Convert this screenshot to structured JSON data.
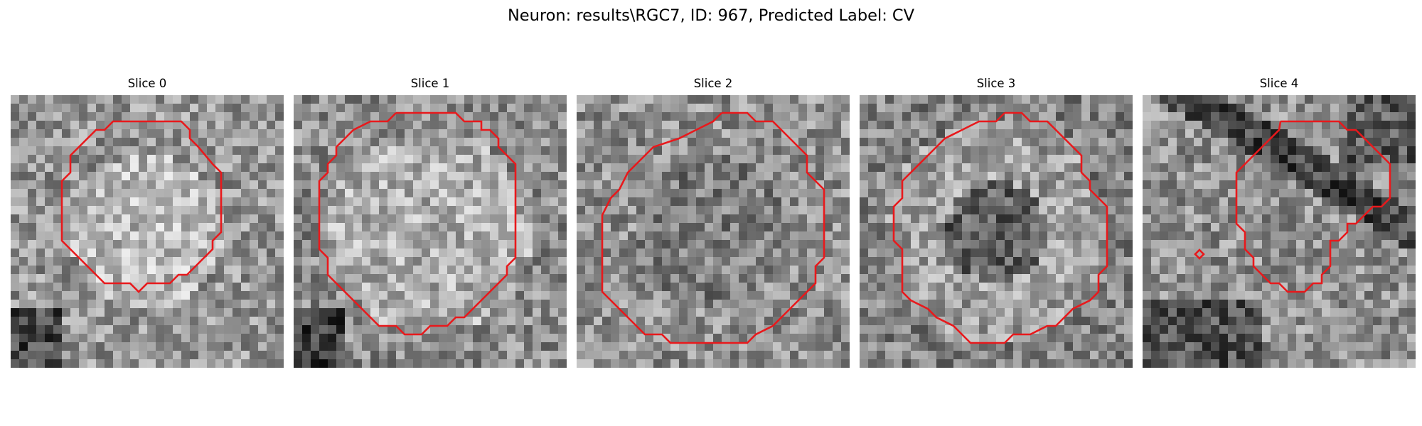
{
  "figure": {
    "title": "Neuron: results\\RGC7, ID: 967, Predicted Label: CV"
  },
  "panels": [
    {
      "title": "Slice 0"
    },
    {
      "title": "Slice 1"
    },
    {
      "title": "Slice 2"
    },
    {
      "title": "Slice 3"
    },
    {
      "title": "Slice 4"
    }
  ],
  "contour_color": "#e8191c",
  "image": {
    "description_free": true,
    "colormap": "gray",
    "grid_size": 32
  }
}
